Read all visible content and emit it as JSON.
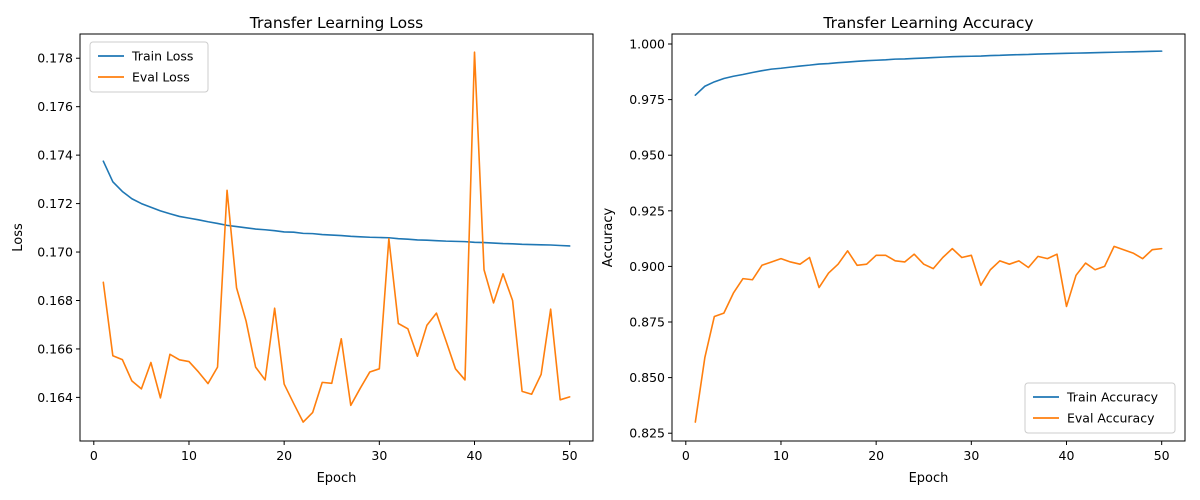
{
  "chart_data": [
    {
      "type": "line",
      "title": "Transfer Learning Loss",
      "xlabel": "Epoch",
      "ylabel": "Loss",
      "xlim": [
        -1.45,
        52.45
      ],
      "ylim": [
        0.1622,
        0.179
      ],
      "xticks": [
        0,
        10,
        20,
        30,
        40,
        50
      ],
      "xtick_labels": [
        "0",
        "10",
        "20",
        "30",
        "40",
        "50"
      ],
      "yticks": [
        0.164,
        0.166,
        0.168,
        0.17,
        0.172,
        0.174,
        0.176,
        0.178
      ],
      "ytick_labels": [
        "0.164",
        "0.166",
        "0.168",
        "0.170",
        "0.172",
        "0.174",
        "0.176",
        "0.178"
      ],
      "legend": "top-left",
      "grid": false,
      "x": [
        1,
        2,
        3,
        4,
        5,
        6,
        7,
        8,
        9,
        10,
        11,
        12,
        13,
        14,
        15,
        16,
        17,
        18,
        19,
        20,
        21,
        22,
        23,
        24,
        25,
        26,
        27,
        28,
        29,
        30,
        31,
        32,
        33,
        34,
        35,
        36,
        37,
        38,
        39,
        40,
        41,
        42,
        43,
        44,
        45,
        46,
        47,
        48,
        49,
        50
      ],
      "series": [
        {
          "name": "Train Loss",
          "color": "#1f77b4",
          "values": [
            0.17375,
            0.1729,
            0.1725,
            0.1722,
            0.172,
            0.17185,
            0.1717,
            0.17158,
            0.17147,
            0.1714,
            0.17133,
            0.17125,
            0.17118,
            0.1711,
            0.17105,
            0.171,
            0.17095,
            0.17092,
            0.17088,
            0.17083,
            0.17082,
            0.17077,
            0.17076,
            0.17072,
            0.1707,
            0.17068,
            0.17065,
            0.17063,
            0.17061,
            0.1706,
            0.17059,
            0.17055,
            0.17053,
            0.1705,
            0.17049,
            0.17047,
            0.17045,
            0.17044,
            0.17043,
            0.1704,
            0.17039,
            0.17037,
            0.17035,
            0.17034,
            0.17032,
            0.17031,
            0.1703,
            0.17029,
            0.17027,
            0.17025
          ]
        },
        {
          "name": "Eval Loss",
          "color": "#ff7f0e",
          "values": [
            0.16875,
            0.16572,
            0.16556,
            0.16468,
            0.16435,
            0.16544,
            0.16398,
            0.16578,
            0.16555,
            0.16548,
            0.16505,
            0.16457,
            0.16525,
            0.17255,
            0.16852,
            0.16715,
            0.16525,
            0.16472,
            0.16768,
            0.16455,
            0.16375,
            0.16298,
            0.16338,
            0.16462,
            0.16458,
            0.16642,
            0.16367,
            0.16438,
            0.16505,
            0.16518,
            0.17055,
            0.16705,
            0.16683,
            0.1657,
            0.16698,
            0.16748,
            0.16634,
            0.16518,
            0.16472,
            0.17825,
            0.16927,
            0.1679,
            0.1691,
            0.168,
            0.16425,
            0.16413,
            0.16495,
            0.16764,
            0.1639,
            0.16402
          ]
        }
      ]
    },
    {
      "type": "line",
      "title": "Transfer Learning Accuracy",
      "xlabel": "Epoch",
      "ylabel": "Accuracy",
      "xlim": [
        -1.45,
        52.45
      ],
      "ylim": [
        0.8215,
        1.0045
      ],
      "xticks": [
        0,
        10,
        20,
        30,
        40,
        50
      ],
      "xtick_labels": [
        "0",
        "10",
        "20",
        "30",
        "40",
        "50"
      ],
      "yticks": [
        0.825,
        0.85,
        0.875,
        0.9,
        0.925,
        0.95,
        0.975,
        1.0
      ],
      "ytick_labels": [
        "0.825",
        "0.850",
        "0.875",
        "0.900",
        "0.925",
        "0.950",
        "0.975",
        "1.000"
      ],
      "legend": "bottom-right",
      "grid": false,
      "x": [
        1,
        2,
        3,
        4,
        5,
        6,
        7,
        8,
        9,
        10,
        11,
        12,
        13,
        14,
        15,
        16,
        17,
        18,
        19,
        20,
        21,
        22,
        23,
        24,
        25,
        26,
        27,
        28,
        29,
        30,
        31,
        32,
        33,
        34,
        35,
        36,
        37,
        38,
        39,
        40,
        41,
        42,
        43,
        44,
        45,
        46,
        47,
        48,
        49,
        50
      ],
      "series": [
        {
          "name": "Train Accuracy",
          "color": "#1f77b4",
          "values": [
            0.977,
            0.981,
            0.983,
            0.9845,
            0.9855,
            0.9863,
            0.9872,
            0.988,
            0.9887,
            0.9891,
            0.9896,
            0.9901,
            0.9905,
            0.991,
            0.9912,
            0.9916,
            0.9919,
            0.9922,
            0.9925,
            0.9927,
            0.9929,
            0.9932,
            0.9933,
            0.9935,
            0.9937,
            0.9939,
            0.9941,
            0.9943,
            0.9944,
            0.9945,
            0.9946,
            0.9948,
            0.9949,
            0.9951,
            0.9952,
            0.9953,
            0.9955,
            0.9956,
            0.9957,
            0.9958,
            0.9959,
            0.996,
            0.9961,
            0.9962,
            0.9963,
            0.9964,
            0.9965,
            0.9966,
            0.9967,
            0.9968
          ]
        },
        {
          "name": "Eval Accuracy",
          "color": "#ff7f0e",
          "values": [
            0.83,
            0.859,
            0.8775,
            0.879,
            0.888,
            0.8945,
            0.894,
            0.9005,
            0.902,
            0.9035,
            0.902,
            0.901,
            0.904,
            0.8905,
            0.897,
            0.901,
            0.907,
            0.9005,
            0.901,
            0.905,
            0.905,
            0.9025,
            0.902,
            0.9055,
            0.901,
            0.899,
            0.904,
            0.908,
            0.904,
            0.905,
            0.8915,
            0.8985,
            0.9025,
            0.901,
            0.9025,
            0.8995,
            0.9045,
            0.9035,
            0.9055,
            0.882,
            0.896,
            0.9015,
            0.8985,
            0.9,
            0.909,
            0.9075,
            0.906,
            0.9035,
            0.9075,
            0.908
          ]
        }
      ]
    }
  ]
}
